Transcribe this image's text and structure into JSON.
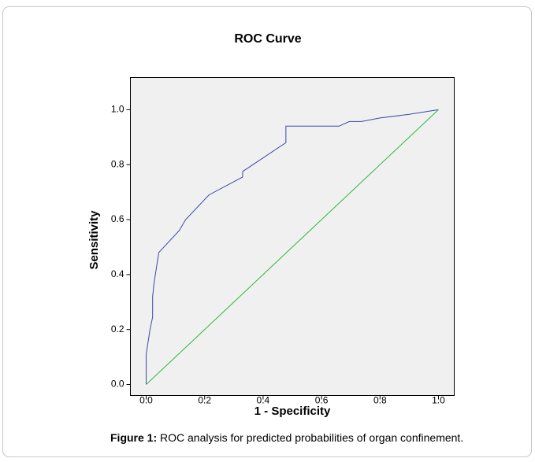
{
  "chart_data": {
    "type": "line",
    "title": "ROC Curve",
    "xlabel": "1 - Specificity",
    "ylabel": "Sensitivity",
    "xlim": [
      -0.054,
      1.054
    ],
    "ylim": [
      -0.04,
      1.117
    ],
    "xticks": [
      {
        "value": 0,
        "label": "0.0"
      },
      {
        "value": 0.2,
        "label": "0.2"
      },
      {
        "value": 0.4,
        "label": "0.4"
      },
      {
        "value": 0.6,
        "label": "0.6"
      },
      {
        "value": 0.8,
        "label": "0.8"
      },
      {
        "value": 1,
        "label": "1.0"
      }
    ],
    "yticks": [
      {
        "value": 0,
        "label": "0.0"
      },
      {
        "value": 0.2,
        "label": "0.2"
      },
      {
        "value": 0.4,
        "label": "0.4"
      },
      {
        "value": 0.6,
        "label": "0.6"
      },
      {
        "value": 0.8,
        "label": "0.8"
      },
      {
        "value": 1,
        "label": "1.0"
      }
    ],
    "grid": false,
    "series": [
      {
        "color": "#3a48a8",
        "x": [
          0,
          0,
          0.013,
          0.022,
          0.022,
          0.027,
          0.043,
          0.113,
          0.135,
          0.215,
          0.33,
          0.33,
          0.478,
          0.478,
          0.66,
          0.695,
          0.737,
          0.8,
          0.9,
          1
        ],
        "values": [
          0,
          0.11,
          0.2,
          0.245,
          0.32,
          0.37,
          0.48,
          0.56,
          0.6,
          0.69,
          0.755,
          0.775,
          0.88,
          0.94,
          0.94,
          0.957,
          0.957,
          0.97,
          0.983,
          1
        ]
      },
      {
        "color": "#2db83d",
        "x": [
          0,
          1
        ],
        "values": [
          0,
          1
        ]
      }
    ]
  },
  "caption": {
    "label": "Figure 1:",
    "text": "ROC analysis for predicted probabilities of organ confinement."
  }
}
